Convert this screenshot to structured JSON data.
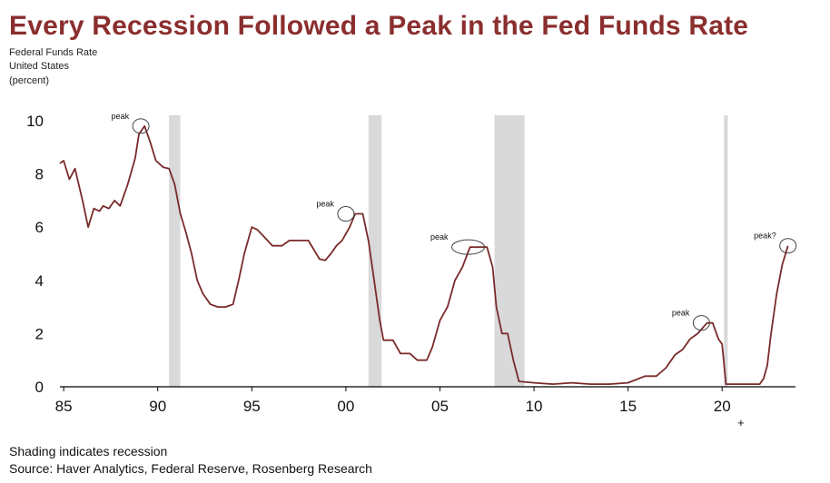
{
  "header": {
    "title": "Every Recession Followed a Peak in the Fed Funds Rate",
    "subtitle_lines": [
      "Federal Funds Rate",
      "United States",
      "(percent)"
    ]
  },
  "footer": {
    "shading_note": "Shading indicates recession",
    "source": "Source: Haver Analytics, Federal Reserve, Rosenberg Research"
  },
  "chart_data": {
    "type": "line",
    "title": "Every Recession Followed a Peak in the Fed Funds Rate",
    "ylabel": "(percent)",
    "xlabel": "",
    "xlim": [
      1984.8,
      2023.9
    ],
    "ylim": [
      0,
      10
    ],
    "y_ticks": [
      {
        "value": 0,
        "label": "0"
      },
      {
        "value": 2,
        "label": "2"
      },
      {
        "value": 4,
        "label": "4"
      },
      {
        "value": 6,
        "label": "6"
      },
      {
        "value": 8,
        "label": "8"
      },
      {
        "value": 10,
        "label": "10"
      }
    ],
    "x_ticks": [
      {
        "value": 1985,
        "label": "85"
      },
      {
        "value": 1990,
        "label": "90"
      },
      {
        "value": 1995,
        "label": "95"
      },
      {
        "value": 2000,
        "label": "00"
      },
      {
        "value": 2005,
        "label": "05"
      },
      {
        "value": 2010,
        "label": "10"
      },
      {
        "value": 2015,
        "label": "15"
      },
      {
        "value": 2020,
        "label": "20"
      }
    ],
    "x_extra_marker": "+",
    "line_color": "#7a2a2a",
    "recession_color": "#d9d9d9",
    "recessions": [
      {
        "start": 1990.6,
        "end": 1991.2
      },
      {
        "start": 2001.2,
        "end": 2001.9
      },
      {
        "start": 2007.9,
        "end": 2009.5
      },
      {
        "start": 2020.1,
        "end": 2020.3
      }
    ],
    "annotations": [
      {
        "label": "peak",
        "x": 1989.1,
        "y": 9.8
      },
      {
        "label": "peak",
        "x": 2000.0,
        "y": 6.5
      },
      {
        "label": "peak",
        "x": 2006.5,
        "y": 5.25
      },
      {
        "label": "peak",
        "x": 2018.9,
        "y": 2.4
      },
      {
        "label": "peak?",
        "x": 2023.5,
        "y": 5.3
      }
    ],
    "series": [
      {
        "x": [
          1984.8,
          1985.0,
          1985.3,
          1985.6,
          1986.0,
          1986.3,
          1986.6,
          1986.9,
          1987.1,
          1987.4,
          1987.7,
          1988.0,
          1988.4,
          1988.8,
          1989.0,
          1989.3,
          1989.6,
          1989.9,
          1990.3,
          1990.6,
          1990.9,
          1991.2,
          1991.5,
          1991.8,
          1992.1,
          1992.4,
          1992.8,
          1993.2,
          1993.6,
          1994.0,
          1994.3,
          1994.6,
          1995.0,
          1995.3,
          1995.7,
          1996.1,
          1996.6,
          1997.0,
          1997.5,
          1998.0,
          1998.6,
          1998.9,
          1999.2,
          1999.5,
          1999.8,
          2000.2,
          2000.5,
          2000.9,
          2001.2,
          2001.5,
          2001.8,
          2002.0,
          2002.5,
          2002.9,
          2003.4,
          2003.8,
          2004.3,
          2004.6,
          2005.0,
          2005.4,
          2005.8,
          2006.2,
          2006.6,
          2007.0,
          2007.5,
          2007.8,
          2008.0,
          2008.3,
          2008.6,
          2008.9,
          2009.2,
          2010.0,
          2011.0,
          2012.0,
          2013.0,
          2014.0,
          2015.0,
          2015.9,
          2016.5,
          2017.0,
          2017.5,
          2017.9,
          2018.3,
          2018.7,
          2019.2,
          2019.5,
          2019.8,
          2020.0,
          2020.2,
          2020.5,
          2021.0,
          2021.5,
          2022.0,
          2022.2,
          2022.4,
          2022.6,
          2022.9,
          2023.2,
          2023.5
        ],
        "y": [
          8.4,
          8.5,
          7.8,
          8.2,
          7.0,
          6.0,
          6.7,
          6.6,
          6.8,
          6.7,
          7.0,
          6.8,
          7.6,
          8.6,
          9.5,
          9.8,
          9.2,
          8.5,
          8.25,
          8.2,
          7.6,
          6.5,
          5.8,
          5.0,
          4.0,
          3.5,
          3.1,
          3.0,
          3.0,
          3.1,
          4.0,
          5.0,
          6.0,
          5.9,
          5.6,
          5.3,
          5.3,
          5.5,
          5.5,
          5.5,
          4.8,
          4.75,
          5.0,
          5.3,
          5.5,
          6.0,
          6.5,
          6.5,
          5.5,
          4.0,
          2.5,
          1.75,
          1.75,
          1.25,
          1.25,
          1.0,
          1.0,
          1.5,
          2.5,
          3.0,
          4.0,
          4.5,
          5.25,
          5.25,
          5.25,
          4.5,
          3.0,
          2.0,
          2.0,
          1.0,
          0.2,
          0.15,
          0.1,
          0.15,
          0.1,
          0.1,
          0.15,
          0.4,
          0.4,
          0.7,
          1.2,
          1.4,
          1.8,
          2.0,
          2.4,
          2.4,
          1.8,
          1.6,
          0.1,
          0.1,
          0.1,
          0.1,
          0.1,
          0.3,
          0.8,
          2.0,
          3.5,
          4.6,
          5.3
        ]
      }
    ]
  }
}
